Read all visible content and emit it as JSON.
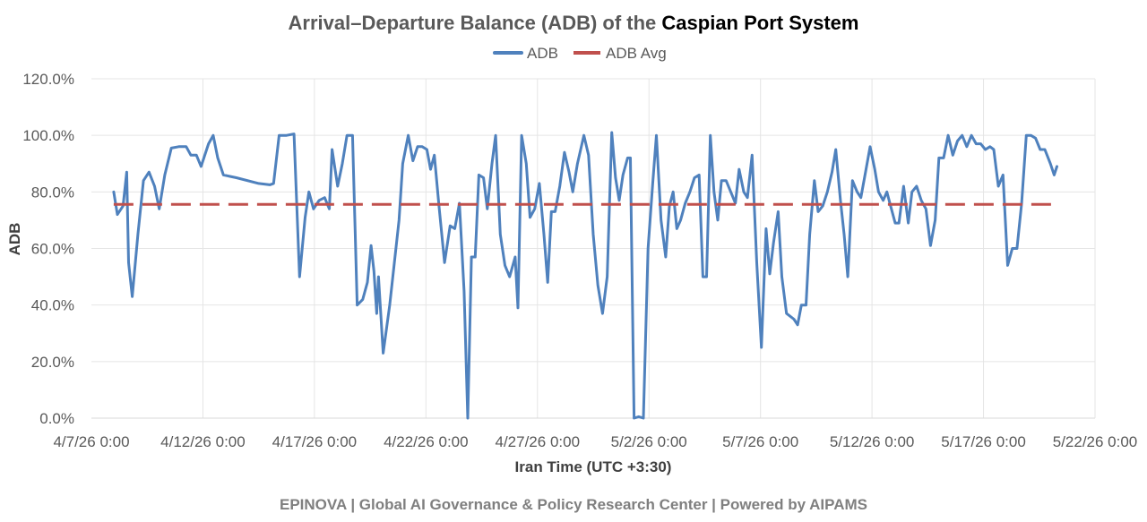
{
  "chart_data": {
    "type": "line",
    "title_main": "Arrival–Departure Balance (ADB) of the ",
    "title_emphasis": "Caspian Port System",
    "xlabel": "Iran Time (UTC +3:30)",
    "ylabel": "ADB",
    "footer": "EPINOVA | Global AI Governance & Policy Research Center | Powered by AIPAMS",
    "legend": {
      "position": "top-center"
    },
    "grid": true,
    "colors": {
      "adb": "#4f81bd",
      "avg": "#c0504d"
    },
    "x_ticks": [
      "4/7/26 0:00",
      "4/12/26 0:00",
      "4/17/26 0:00",
      "4/22/26 0:00",
      "4/27/26 0:00",
      "5/2/26 0:00",
      "5/7/26 0:00",
      "5/12/26 0:00",
      "5/17/26 0:00",
      "5/22/26 0:00"
    ],
    "xlim": [
      "4/7/26 0:00",
      "5/22/26 0:00"
    ],
    "y_ticks": [
      "0.0%",
      "20.0%",
      "40.0%",
      "60.0%",
      "80.0%",
      "100.0%",
      "120.0%"
    ],
    "ylim": [
      0,
      120
    ],
    "series": [
      {
        "name": "ADB",
        "style": "solid",
        "points": [
          [
            "4/8/26 0:00",
            80
          ],
          [
            "4/8/26 4:00",
            72
          ],
          [
            "4/8/26 10:00",
            75
          ],
          [
            "4/8/26 14:00",
            87
          ],
          [
            "4/8/26 16:00",
            55
          ],
          [
            "4/8/26 20:00",
            43
          ],
          [
            "4/9/26 2:00",
            65
          ],
          [
            "4/9/26 8:00",
            84
          ],
          [
            "4/9/26 14:00",
            87
          ],
          [
            "4/9/26 20:00",
            82
          ],
          [
            "4/10/26 1:00",
            74
          ],
          [
            "4/10/26 7:00",
            86
          ],
          [
            "4/10/26 14:00",
            95.5
          ],
          [
            "4/10/26 22:00",
            96
          ],
          [
            "4/11/26 6:00",
            96
          ],
          [
            "4/11/26 11:00",
            93
          ],
          [
            "4/11/26 17:00",
            93
          ],
          [
            "4/11/26 22:00",
            89
          ],
          [
            "4/12/26 6:00",
            97
          ],
          [
            "4/12/26 11:00",
            100
          ],
          [
            "4/12/26 16:00",
            92
          ],
          [
            "4/12/26 22:00",
            86
          ],
          [
            "4/13/26 12:00",
            85
          ],
          [
            "4/14/26 12:00",
            83
          ],
          [
            "4/15/26 0:00",
            82.5
          ],
          [
            "4/15/26 4:00",
            83
          ],
          [
            "4/15/26 10:00",
            100
          ],
          [
            "4/15/26 18:00",
            100
          ],
          [
            "4/16/26 2:00",
            100.5
          ],
          [
            "4/16/26 8:00",
            50
          ],
          [
            "4/16/26 14:00",
            71
          ],
          [
            "4/16/26 18:00",
            80
          ],
          [
            "4/16/26 23:00",
            74
          ],
          [
            "4/17/26 5:00",
            77
          ],
          [
            "4/17/26 11:00",
            78
          ],
          [
            "4/17/26 16:00",
            74
          ],
          [
            "4/17/26 19:00",
            95
          ],
          [
            "4/18/26 1:00",
            82
          ],
          [
            "4/18/26 6:00",
            90
          ],
          [
            "4/18/26 11:00",
            100
          ],
          [
            "4/18/26 17:00",
            100
          ],
          [
            "4/18/26 22:00",
            40
          ],
          [
            "4/19/26 4:00",
            42
          ],
          [
            "4/19/26 9:00",
            48
          ],
          [
            "4/19/26 13:00",
            61
          ],
          [
            "4/19/26 16:00",
            52
          ],
          [
            "4/19/26 19:00",
            37
          ],
          [
            "4/19/26 21:00",
            50
          ],
          [
            "4/20/26 2:00",
            23
          ],
          [
            "4/20/26 9:00",
            40
          ],
          [
            "4/20/26 14:00",
            55
          ],
          [
            "4/20/26 19:00",
            70
          ],
          [
            "4/20/26 23:00",
            90
          ],
          [
            "4/21/26 5:00",
            100
          ],
          [
            "4/21/26 10:00",
            91
          ],
          [
            "4/21/26 15:00",
            96
          ],
          [
            "4/21/26 20:00",
            96
          ],
          [
            "4/22/26 1:00",
            95
          ],
          [
            "4/22/26 5:00",
            88
          ],
          [
            "4/22/26 9:00",
            93
          ],
          [
            "4/22/26 14:00",
            75
          ],
          [
            "4/22/26 20:00",
            55
          ],
          [
            "4/23/26 2:00",
            68
          ],
          [
            "4/23/26 7:00",
            67
          ],
          [
            "4/23/26 12:00",
            76
          ],
          [
            "4/23/26 17:00",
            45
          ],
          [
            "4/23/26 21:00",
            0
          ],
          [
            "4/24/26 1:00",
            57
          ],
          [
            "4/24/26 5:00",
            57
          ],
          [
            "4/24/26 9:00",
            86
          ],
          [
            "4/24/26 14:00",
            85
          ],
          [
            "4/24/26 18:00",
            74
          ],
          [
            "4/24/26 23:00",
            90
          ],
          [
            "4/25/26 3:00",
            100
          ],
          [
            "4/25/26 8:00",
            65
          ],
          [
            "4/25/26 13:00",
            54
          ],
          [
            "4/25/26 18:00",
            50
          ],
          [
            "4/26/26 0:00",
            57
          ],
          [
            "4/26/26 3:00",
            39
          ],
          [
            "4/26/26 7:00",
            100
          ],
          [
            "4/26/26 12:00",
            90
          ],
          [
            "4/26/26 16:00",
            71
          ],
          [
            "4/26/26 21:00",
            74
          ],
          [
            "4/27/26 2:00",
            83
          ],
          [
            "4/27/26 7:00",
            65
          ],
          [
            "4/27/26 11:00",
            48
          ],
          [
            "4/27/26 15:00",
            73
          ],
          [
            "4/27/26 19:00",
            73
          ],
          [
            "4/28/26 0:00",
            82
          ],
          [
            "4/28/26 5:00",
            94
          ],
          [
            "4/28/26 10:00",
            87
          ],
          [
            "4/28/26 14:00",
            80
          ],
          [
            "4/28/26 19:00",
            90
          ],
          [
            "4/29/26 2:00",
            100
          ],
          [
            "4/29/26 7:00",
            93
          ],
          [
            "4/29/26 12:00",
            65
          ],
          [
            "4/29/26 17:00",
            47
          ],
          [
            "4/29/26 22:00",
            37
          ],
          [
            "4/30/26 3:00",
            50
          ],
          [
            "4/30/26 8:00",
            101
          ],
          [
            "4/30/26 12:00",
            85
          ],
          [
            "4/30/26 16:00",
            77
          ],
          [
            "4/30/26 20:00",
            86
          ],
          [
            "5/1/26 1:00",
            92
          ],
          [
            "5/1/26 4:00",
            92
          ],
          [
            "5/1/26 8:00",
            0
          ],
          [
            "5/1/26 13:00",
            0.5
          ],
          [
            "5/1/26 18:00",
            0
          ],
          [
            "5/1/26 23:00",
            60
          ],
          [
            "5/2/26 4:00",
            83
          ],
          [
            "5/2/26 8:00",
            100
          ],
          [
            "5/2/26 13:00",
            70
          ],
          [
            "5/2/26 18:00",
            57
          ],
          [
            "5/2/26 22:00",
            75
          ],
          [
            "5/3/26 2:00",
            80
          ],
          [
            "5/3/26 6:00",
            67
          ],
          [
            "5/3/26 10:00",
            70
          ],
          [
            "5/3/26 15:00",
            76
          ],
          [
            "5/3/26 20:00",
            80
          ],
          [
            "5/4/26 1:00",
            85
          ],
          [
            "5/4/26 6:00",
            86
          ],
          [
            "5/4/26 10:00",
            50
          ],
          [
            "5/4/26 14:00",
            50
          ],
          [
            "5/4/26 18:00",
            100
          ],
          [
            "5/4/26 22:00",
            80
          ],
          [
            "5/5/26 2:00",
            70
          ],
          [
            "5/5/26 6:00",
            84
          ],
          [
            "5/5/26 11:00",
            84
          ],
          [
            "5/5/26 16:00",
            80
          ],
          [
            "5/5/26 21:00",
            76
          ],
          [
            "5/6/26 1:00",
            88
          ],
          [
            "5/6/26 6:00",
            80
          ],
          [
            "5/6/26 10:00",
            78
          ],
          [
            "5/6/26 15:00",
            93
          ],
          [
            "5/6/26 20:00",
            55
          ],
          [
            "5/7/26 1:00",
            25
          ],
          [
            "5/7/26 6:00",
            67
          ],
          [
            "5/7/26 10:00",
            51
          ],
          [
            "5/7/26 14:00",
            62
          ],
          [
            "5/7/26 19:00",
            73
          ],
          [
            "5/7/26 23:00",
            50
          ],
          [
            "5/8/26 4:00",
            37
          ],
          [
            "5/8/26 8:00",
            36
          ],
          [
            "5/8/26 12:00",
            35
          ],
          [
            "5/8/26 16:00",
            33
          ],
          [
            "5/8/26 20:00",
            40
          ],
          [
            "5/9/26 1:00",
            40
          ],
          [
            "5/9/26 5:00",
            65
          ],
          [
            "5/9/26 10:00",
            84
          ],
          [
            "5/9/26 14:00",
            73
          ],
          [
            "5/9/26 19:00",
            75
          ],
          [
            "5/10/26 0:00",
            80
          ],
          [
            "5/10/26 5:00",
            87
          ],
          [
            "5/10/26 9:00",
            95
          ],
          [
            "5/10/26 14:00",
            77
          ],
          [
            "5/10/26 18:00",
            65
          ],
          [
            "5/10/26 22:00",
            50
          ],
          [
            "5/11/26 3:00",
            84
          ],
          [
            "5/11/26 8:00",
            80
          ],
          [
            "5/11/26 12:00",
            78
          ],
          [
            "5/11/26 17:00",
            87
          ],
          [
            "5/11/26 22:00",
            96
          ],
          [
            "5/12/26 3:00",
            88
          ],
          [
            "5/12/26 7:00",
            80
          ],
          [
            "5/12/26 12:00",
            77
          ],
          [
            "5/12/26 16:00",
            80
          ],
          [
            "5/12/26 20:00",
            75
          ],
          [
            "5/13/26 1:00",
            69
          ],
          [
            "5/13/26 5:00",
            69
          ],
          [
            "5/13/26 10:00",
            82
          ],
          [
            "5/13/26 15:00",
            69
          ],
          [
            "5/13/26 19:00",
            80
          ],
          [
            "5/14/26 0:00",
            82
          ],
          [
            "5/14/26 5:00",
            77
          ],
          [
            "5/14/26 10:00",
            74
          ],
          [
            "5/14/26 15:00",
            61
          ],
          [
            "5/14/26 20:00",
            70
          ],
          [
            "5/15/26 0:00",
            92
          ],
          [
            "5/15/26 5:00",
            92
          ],
          [
            "5/15/26 10:00",
            100
          ],
          [
            "5/15/26 15:00",
            93
          ],
          [
            "5/15/26 20:00",
            98
          ],
          [
            "5/16/26 1:00",
            100
          ],
          [
            "5/16/26 6:00",
            96
          ],
          [
            "5/16/26 11:00",
            100
          ],
          [
            "5/16/26 16:00",
            97
          ],
          [
            "5/16/26 21:00",
            97
          ],
          [
            "5/17/26 2:00",
            95
          ],
          [
            "5/17/26 7:00",
            96
          ],
          [
            "5/17/26 11:00",
            95
          ],
          [
            "5/17/26 16:00",
            82
          ],
          [
            "5/17/26 21:00",
            86
          ],
          [
            "5/18/26 2:00",
            54
          ],
          [
            "5/18/26 7:00",
            60
          ],
          [
            "5/18/26 12:00",
            60
          ],
          [
            "5/18/26 17:00",
            76
          ],
          [
            "5/18/26 22:00",
            100
          ],
          [
            "5/19/26 3:00",
            100
          ],
          [
            "5/19/26 8:00",
            99
          ],
          [
            "5/19/26 13:00",
            95
          ],
          [
            "5/19/26 18:00",
            95
          ],
          [
            "5/20/26 0:00",
            90
          ],
          [
            "5/20/26 4:00",
            86
          ],
          [
            "5/20/26 7:00",
            89
          ]
        ]
      },
      {
        "name": "ADB Avg",
        "style": "dashed",
        "points": [
          [
            "4/8/26 0:00",
            75.6
          ],
          [
            "5/20/26 7:00",
            75.6
          ]
        ]
      }
    ]
  }
}
